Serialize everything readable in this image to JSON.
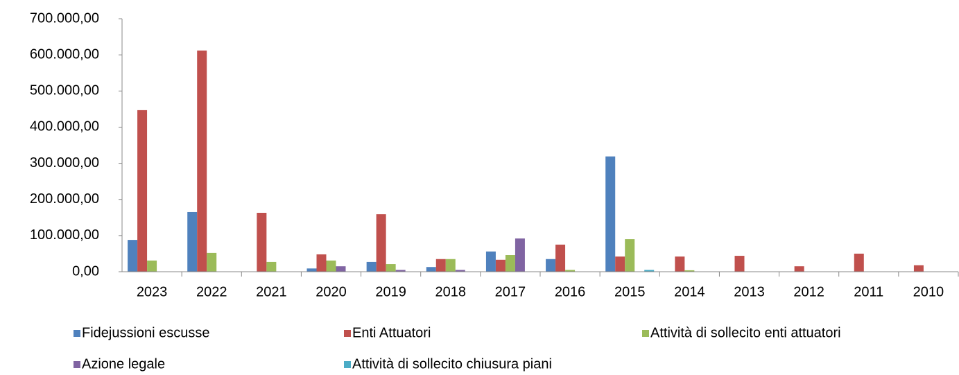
{
  "chart_data": {
    "type": "bar",
    "categories": [
      "2023",
      "2022",
      "2021",
      "2020",
      "2019",
      "2018",
      "2017",
      "2016",
      "2015",
      "2014",
      "2013",
      "2012",
      "2011",
      "2010"
    ],
    "series": [
      {
        "name": "Fidejussioni escusse",
        "color": "#4f81bd",
        "values": [
          88000,
          165000,
          0,
          9000,
          27000,
          13000,
          56000,
          35000,
          319000,
          0,
          0,
          0,
          0,
          0
        ]
      },
      {
        "name": "Enti Attuatori",
        "color": "#c0504d",
        "values": [
          447000,
          612000,
          163000,
          48000,
          159000,
          35000,
          33000,
          75000,
          42000,
          42000,
          44000,
          15000,
          50000,
          18000
        ]
      },
      {
        "name": "Attività di sollecito enti attuatori",
        "color": "#9bbb59",
        "values": [
          31000,
          52000,
          27000,
          31000,
          21000,
          35000,
          46000,
          5000,
          90000,
          4000,
          0,
          0,
          0,
          0
        ]
      },
      {
        "name": "Azione legale",
        "color": "#8064a2",
        "values": [
          0,
          0,
          0,
          15000,
          5000,
          5000,
          92000,
          0,
          0,
          0,
          0,
          0,
          0,
          0
        ]
      },
      {
        "name": "Attività di sollecito chiusura piani",
        "color": "#4bacc6",
        "values": [
          0,
          0,
          0,
          0,
          0,
          0,
          0,
          0,
          5000,
          0,
          0,
          0,
          0,
          0
        ]
      }
    ],
    "ylim": [
      0,
      700000
    ],
    "yticks": [
      {
        "value": 0,
        "label": "0,00"
      },
      {
        "value": 100000,
        "label": "100.000,00"
      },
      {
        "value": 200000,
        "label": "200.000,00"
      },
      {
        "value": 300000,
        "label": "300.000,00"
      },
      {
        "value": 400000,
        "label": "400.000,00"
      },
      {
        "value": 500000,
        "label": "500.000,00"
      },
      {
        "value": 600000,
        "label": "600.000,00"
      },
      {
        "value": 700000,
        "label": "700.000,00"
      }
    ],
    "grid": false,
    "legend": "bottom"
  }
}
